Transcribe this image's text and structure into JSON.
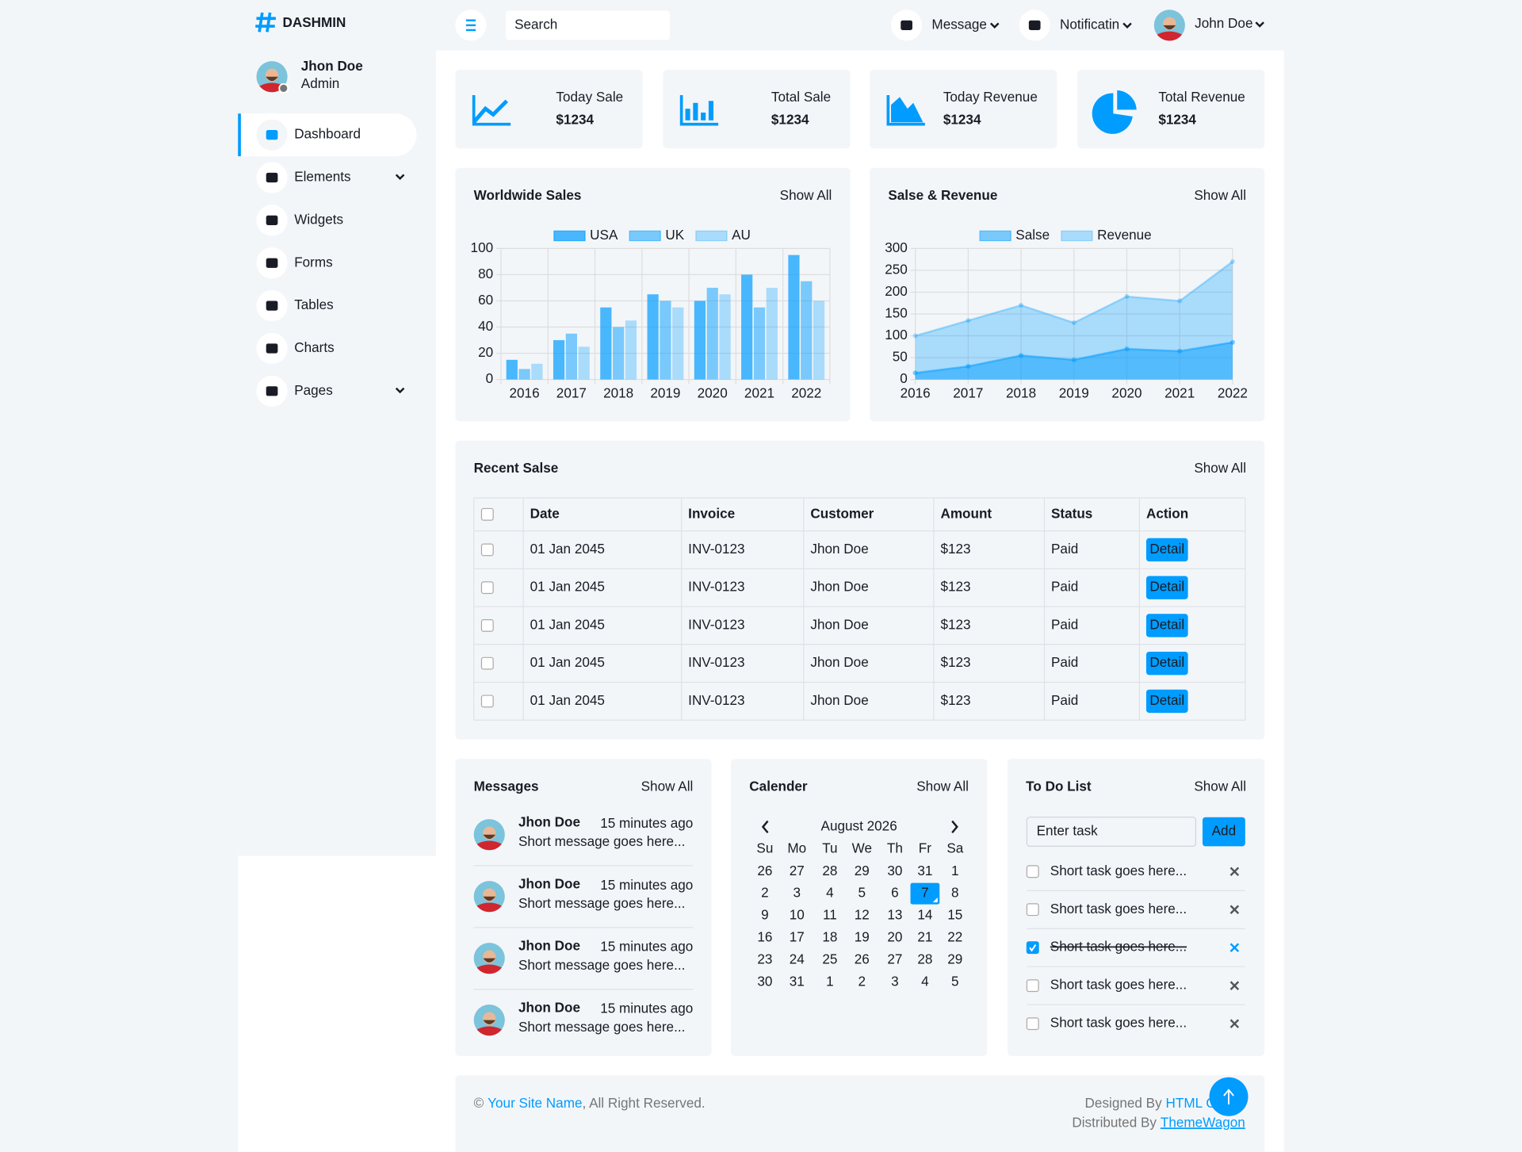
{
  "brand": "DASHMIN",
  "sidebar": {
    "user": {
      "name": "Jhon Doe",
      "role": "Admin"
    },
    "nav": [
      {
        "label": "Dashboard",
        "active": true
      },
      {
        "label": "Elements",
        "dropdown": true
      },
      {
        "label": "Widgets"
      },
      {
        "label": "Forms"
      },
      {
        "label": "Tables"
      },
      {
        "label": "Charts"
      },
      {
        "label": "Pages",
        "dropdown": true
      }
    ]
  },
  "topbar": {
    "search_placeholder": "Search",
    "menus": [
      "Message",
      "Notificatin"
    ],
    "user": "John Doe"
  },
  "stats": [
    {
      "label": "Today Sale",
      "value": "$1234"
    },
    {
      "label": "Total Sale",
      "value": "$1234"
    },
    {
      "label": "Today Revenue",
      "value": "$1234"
    },
    {
      "label": "Total Revenue",
      "value": "$1234"
    }
  ],
  "chart_links": [
    "Show All",
    "Show All"
  ],
  "chart_data": [
    {
      "type": "bar",
      "title": "Worldwide Sales",
      "categories": [
        "2016",
        "2017",
        "2018",
        "2019",
        "2020",
        "2021",
        "2022"
      ],
      "series": [
        {
          "name": "USA",
          "color": "rgba(0, 156, 255, 0.7)",
          "values": [
            15,
            30,
            55,
            65,
            60,
            80,
            95
          ]
        },
        {
          "name": "UK",
          "color": "rgba(0, 156, 255, 0.5)",
          "values": [
            8,
            35,
            40,
            60,
            70,
            55,
            75
          ]
        },
        {
          "name": "AU",
          "color": "rgba(0, 156, 255, 0.3)",
          "values": [
            12,
            25,
            45,
            55,
            65,
            70,
            60
          ]
        }
      ],
      "ylim": [
        0,
        100
      ],
      "yticks": [
        0,
        20,
        40,
        60,
        80,
        100
      ],
      "grid": true,
      "legend": "top"
    },
    {
      "type": "area",
      "title": "Salse & Revenue",
      "categories": [
        "2016",
        "2017",
        "2018",
        "2019",
        "2020",
        "2021",
        "2022"
      ],
      "series": [
        {
          "name": "Salse",
          "color": "rgba(0, 156, 255, 0.5)",
          "values": [
            15,
            30,
            55,
            45,
            70,
            65,
            85
          ]
        },
        {
          "name": "Revenue",
          "color": "rgba(0, 156, 255, 0.3)",
          "values": [
            100,
            135,
            170,
            130,
            190,
            180,
            270
          ]
        }
      ],
      "ylim": [
        0,
        300
      ],
      "yticks": [
        0,
        50,
        100,
        150,
        200,
        250,
        300
      ],
      "grid": true,
      "legend": "top"
    }
  ],
  "recent_sales": {
    "title": "Recent Salse",
    "link": "Show All",
    "columns": [
      "Date",
      "Invoice",
      "Customer",
      "Amount",
      "Status",
      "Action"
    ],
    "rows": [
      [
        "01 Jan 2045",
        "INV-0123",
        "Jhon Doe",
        "$123",
        "Paid",
        "Detail"
      ],
      [
        "01 Jan 2045",
        "INV-0123",
        "Jhon Doe",
        "$123",
        "Paid",
        "Detail"
      ],
      [
        "01 Jan 2045",
        "INV-0123",
        "Jhon Doe",
        "$123",
        "Paid",
        "Detail"
      ],
      [
        "01 Jan 2045",
        "INV-0123",
        "Jhon Doe",
        "$123",
        "Paid",
        "Detail"
      ],
      [
        "01 Jan 2045",
        "INV-0123",
        "Jhon Doe",
        "$123",
        "Paid",
        "Detail"
      ]
    ]
  },
  "messages": {
    "title": "Messages",
    "link": "Show All",
    "items": [
      {
        "name": "Jhon Doe",
        "time": "15 minutes ago",
        "text": "Short message goes here..."
      },
      {
        "name": "Jhon Doe",
        "time": "15 minutes ago",
        "text": "Short message goes here..."
      },
      {
        "name": "Jhon Doe",
        "time": "15 minutes ago",
        "text": "Short message goes here..."
      },
      {
        "name": "Jhon Doe",
        "time": "15 minutes ago",
        "text": "Short message goes here..."
      }
    ]
  },
  "calendar": {
    "title": "Calender",
    "link": "Show All",
    "month": "August 2026",
    "weekdays": [
      "Su",
      "Mo",
      "Tu",
      "We",
      "Th",
      "Fr",
      "Sa"
    ],
    "weeks": [
      [
        26,
        27,
        28,
        29,
        30,
        31,
        1
      ],
      [
        2,
        3,
        4,
        5,
        6,
        7,
        8
      ],
      [
        9,
        10,
        11,
        12,
        13,
        14,
        15
      ],
      [
        16,
        17,
        18,
        19,
        20,
        21,
        22
      ],
      [
        23,
        24,
        25,
        26,
        27,
        28,
        29
      ],
      [
        30,
        31,
        1,
        2,
        3,
        4,
        5
      ]
    ],
    "selected": 7
  },
  "todo": {
    "title": "To Do List",
    "link": "Show All",
    "placeholder": "Enter task",
    "button": "Add",
    "tasks": [
      {
        "text": "Short task goes here...",
        "done": false
      },
      {
        "text": "Short task goes here...",
        "done": false
      },
      {
        "text": "Short task goes here...",
        "done": true
      },
      {
        "text": "Short task goes here...",
        "done": false
      },
      {
        "text": "Short task goes here...",
        "done": false
      }
    ]
  },
  "footer": {
    "copyright_symbol": "©",
    "site_name": "Your Site Name",
    "rights": ", All Right Reserved.",
    "designed_by": "Designed By",
    "designer": "HTML Codex",
    "distributed_by": "Distributed By",
    "distributor": "ThemeWagon"
  }
}
